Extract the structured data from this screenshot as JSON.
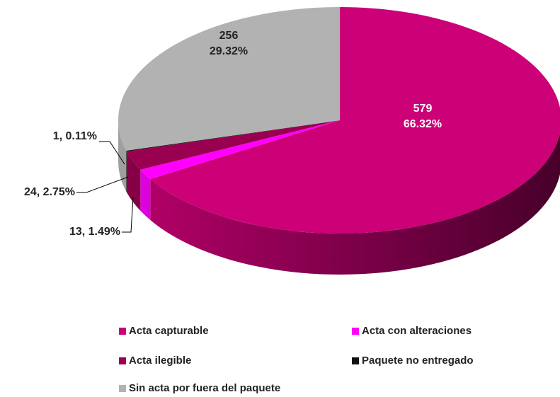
{
  "chart_data": {
    "type": "pie",
    "categories": [
      "Acta capturable",
      "Acta con alteraciones",
      "Acta ilegible",
      "Paquete no entregado",
      "Sin acta por fuera del paquete"
    ],
    "values": [
      66.32,
      1.49,
      2.75,
      0.11,
      29.32
    ],
    "counts": [
      579,
      13,
      24,
      1,
      256
    ],
    "value_labels": [
      [
        "579",
        "66.32%"
      ],
      [
        "13, 1.49%"
      ],
      [
        "24, 2.75%"
      ],
      [
        "1, 0.11%"
      ],
      [
        "256",
        "29.32%"
      ]
    ],
    "colors": [
      "#cc0077",
      "#ff00ff",
      "#990050",
      "#111111",
      "#b2b2b2"
    ],
    "legend": "bottom"
  }
}
